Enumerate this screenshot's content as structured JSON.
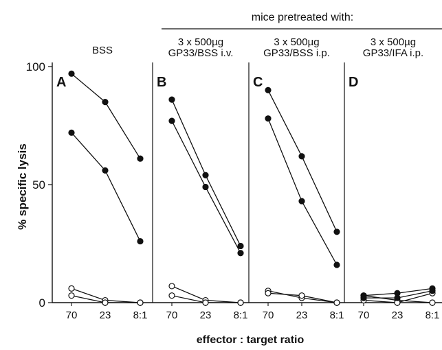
{
  "header": "mice pretreated with:",
  "ylabel": "% specific lysis",
  "xlabel": "effector : target ratio",
  "yticks": [
    "0",
    "50",
    "100"
  ],
  "chart_data": {
    "type": "line",
    "categories": [
      "70",
      "23",
      "8:1"
    ],
    "ylim": [
      0,
      100
    ],
    "grid": false,
    "panels": [
      {
        "letter": "A",
        "condition": [
          "BSS"
        ],
        "filled": [
          [
            97,
            85,
            61
          ],
          [
            72,
            56,
            26
          ]
        ],
        "open": [
          [
            6,
            1,
            0
          ],
          [
            3,
            0,
            0
          ]
        ]
      },
      {
        "letter": "B",
        "condition": [
          "3 x 500µg",
          "GP33/BSS i.v."
        ],
        "filled": [
          [
            86,
            54,
            24
          ],
          [
            77,
            49,
            21
          ]
        ],
        "open": [
          [
            7,
            1,
            0
          ],
          [
            3,
            0,
            0
          ]
        ]
      },
      {
        "letter": "C",
        "condition": [
          "3 x 500µg",
          "GP33/BSS i.p."
        ],
        "filled": [
          [
            90,
            62,
            30
          ],
          [
            78,
            43,
            16
          ]
        ],
        "open": [
          [
            5,
            2,
            0
          ],
          [
            4,
            3,
            0
          ]
        ]
      },
      {
        "letter": "D",
        "condition": [
          "3 x 500µg",
          "GP33/IFA i.p."
        ],
        "filled": [
          [
            3,
            4,
            6
          ],
          [
            2,
            2,
            5
          ]
        ],
        "open": [
          [
            3,
            1,
            0
          ],
          [
            1,
            0,
            4
          ]
        ]
      }
    ]
  }
}
